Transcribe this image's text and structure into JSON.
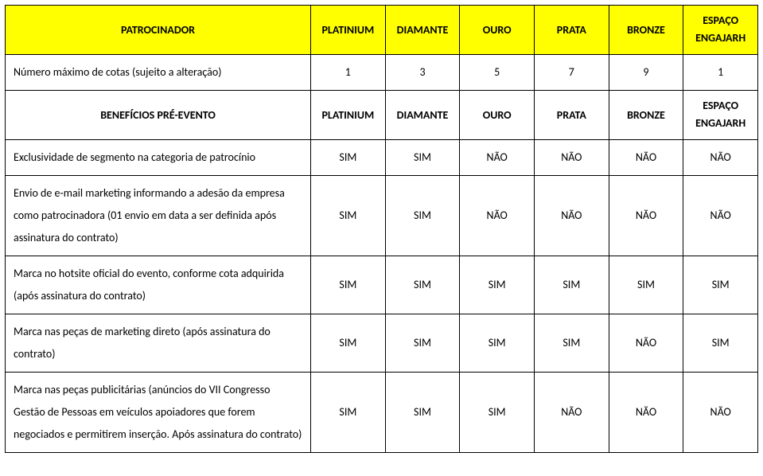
{
  "colors": {
    "yellow": "#ffff00",
    "border": "#000000",
    "text": "#000000",
    "bg": "#ffffff"
  },
  "header1": {
    "title": "PATROCINADOR",
    "tiers": [
      "PLATINIUM",
      "DIAMANTE",
      "OURO",
      "PRATA",
      "BRONZE"
    ],
    "last_col_line1": "ESPAÇO",
    "last_col_line2": "ENGAJARH"
  },
  "row_cotas": {
    "label": "Número máximo de cotas (sujeito a alteração)",
    "values": [
      "1",
      "3",
      "5",
      "7",
      "9",
      "1"
    ]
  },
  "header2": {
    "title": "BENEFÍCIOS PRÉ-EVENTO",
    "tiers": [
      "PLATINIUM",
      "DIAMANTE",
      "OURO",
      "PRATA",
      "BRONZE"
    ],
    "last_col_line1": "ESPAÇO",
    "last_col_line2": "ENGAJARH"
  },
  "rows": [
    {
      "label": "Exclusividade de segmento na categoria de patrocínio",
      "values": [
        "SIM",
        "SIM",
        "NÃO",
        "NÃO",
        "NÃO",
        "NÃO"
      ]
    },
    {
      "label": "Envio de e-mail marketing informando a adesão da empresa como patrocinadora (01 envio em data a ser definida após assinatura do contrato)",
      "values": [
        "SIM",
        "SIM",
        "NÃO",
        "NÃO",
        "NÃO",
        "NÃO"
      ]
    },
    {
      "label": "Marca no hotsite oficial do evento, conforme cota adquirida (após assinatura do contrato)",
      "values": [
        "SIM",
        "SIM",
        "SIM",
        "SIM",
        "SIM",
        "SIM"
      ]
    },
    {
      "label": "Marca nas peças de marketing direto (após assinatura do contrato)",
      "values": [
        "SIM",
        "SIM",
        "SIM",
        "SIM",
        "NÃO",
        "SIM"
      ]
    },
    {
      "label": "Marca nas peças publicitárias (anúncios do VII Congresso Gestão de Pessoas em veículos apoiadores que forem negociados e permitirem inserção. Após assinatura do contrato)",
      "values": [
        "SIM",
        "SIM",
        "SIM",
        "NÃO",
        "NÃO",
        "NÃO"
      ]
    }
  ]
}
